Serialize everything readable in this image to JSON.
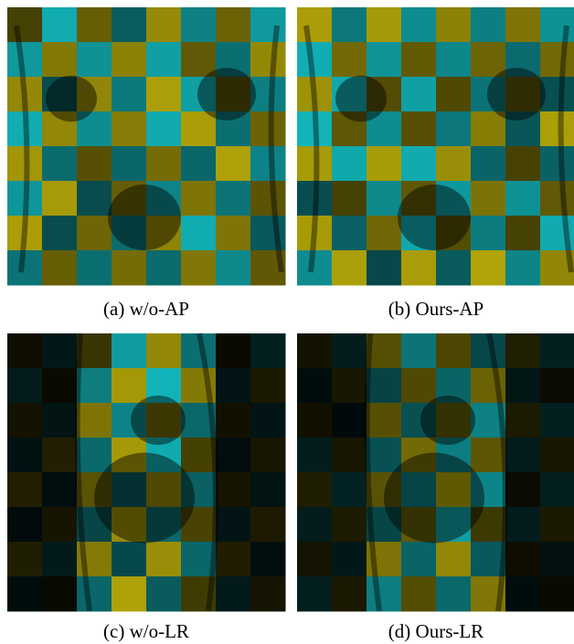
{
  "panels": [
    {
      "caption": "(a) w/o-AP"
    },
    {
      "caption": "(b) Ours-AP"
    },
    {
      "caption": "(c) w/o-LR"
    },
    {
      "caption": "(d) Ours-LR"
    }
  ]
}
